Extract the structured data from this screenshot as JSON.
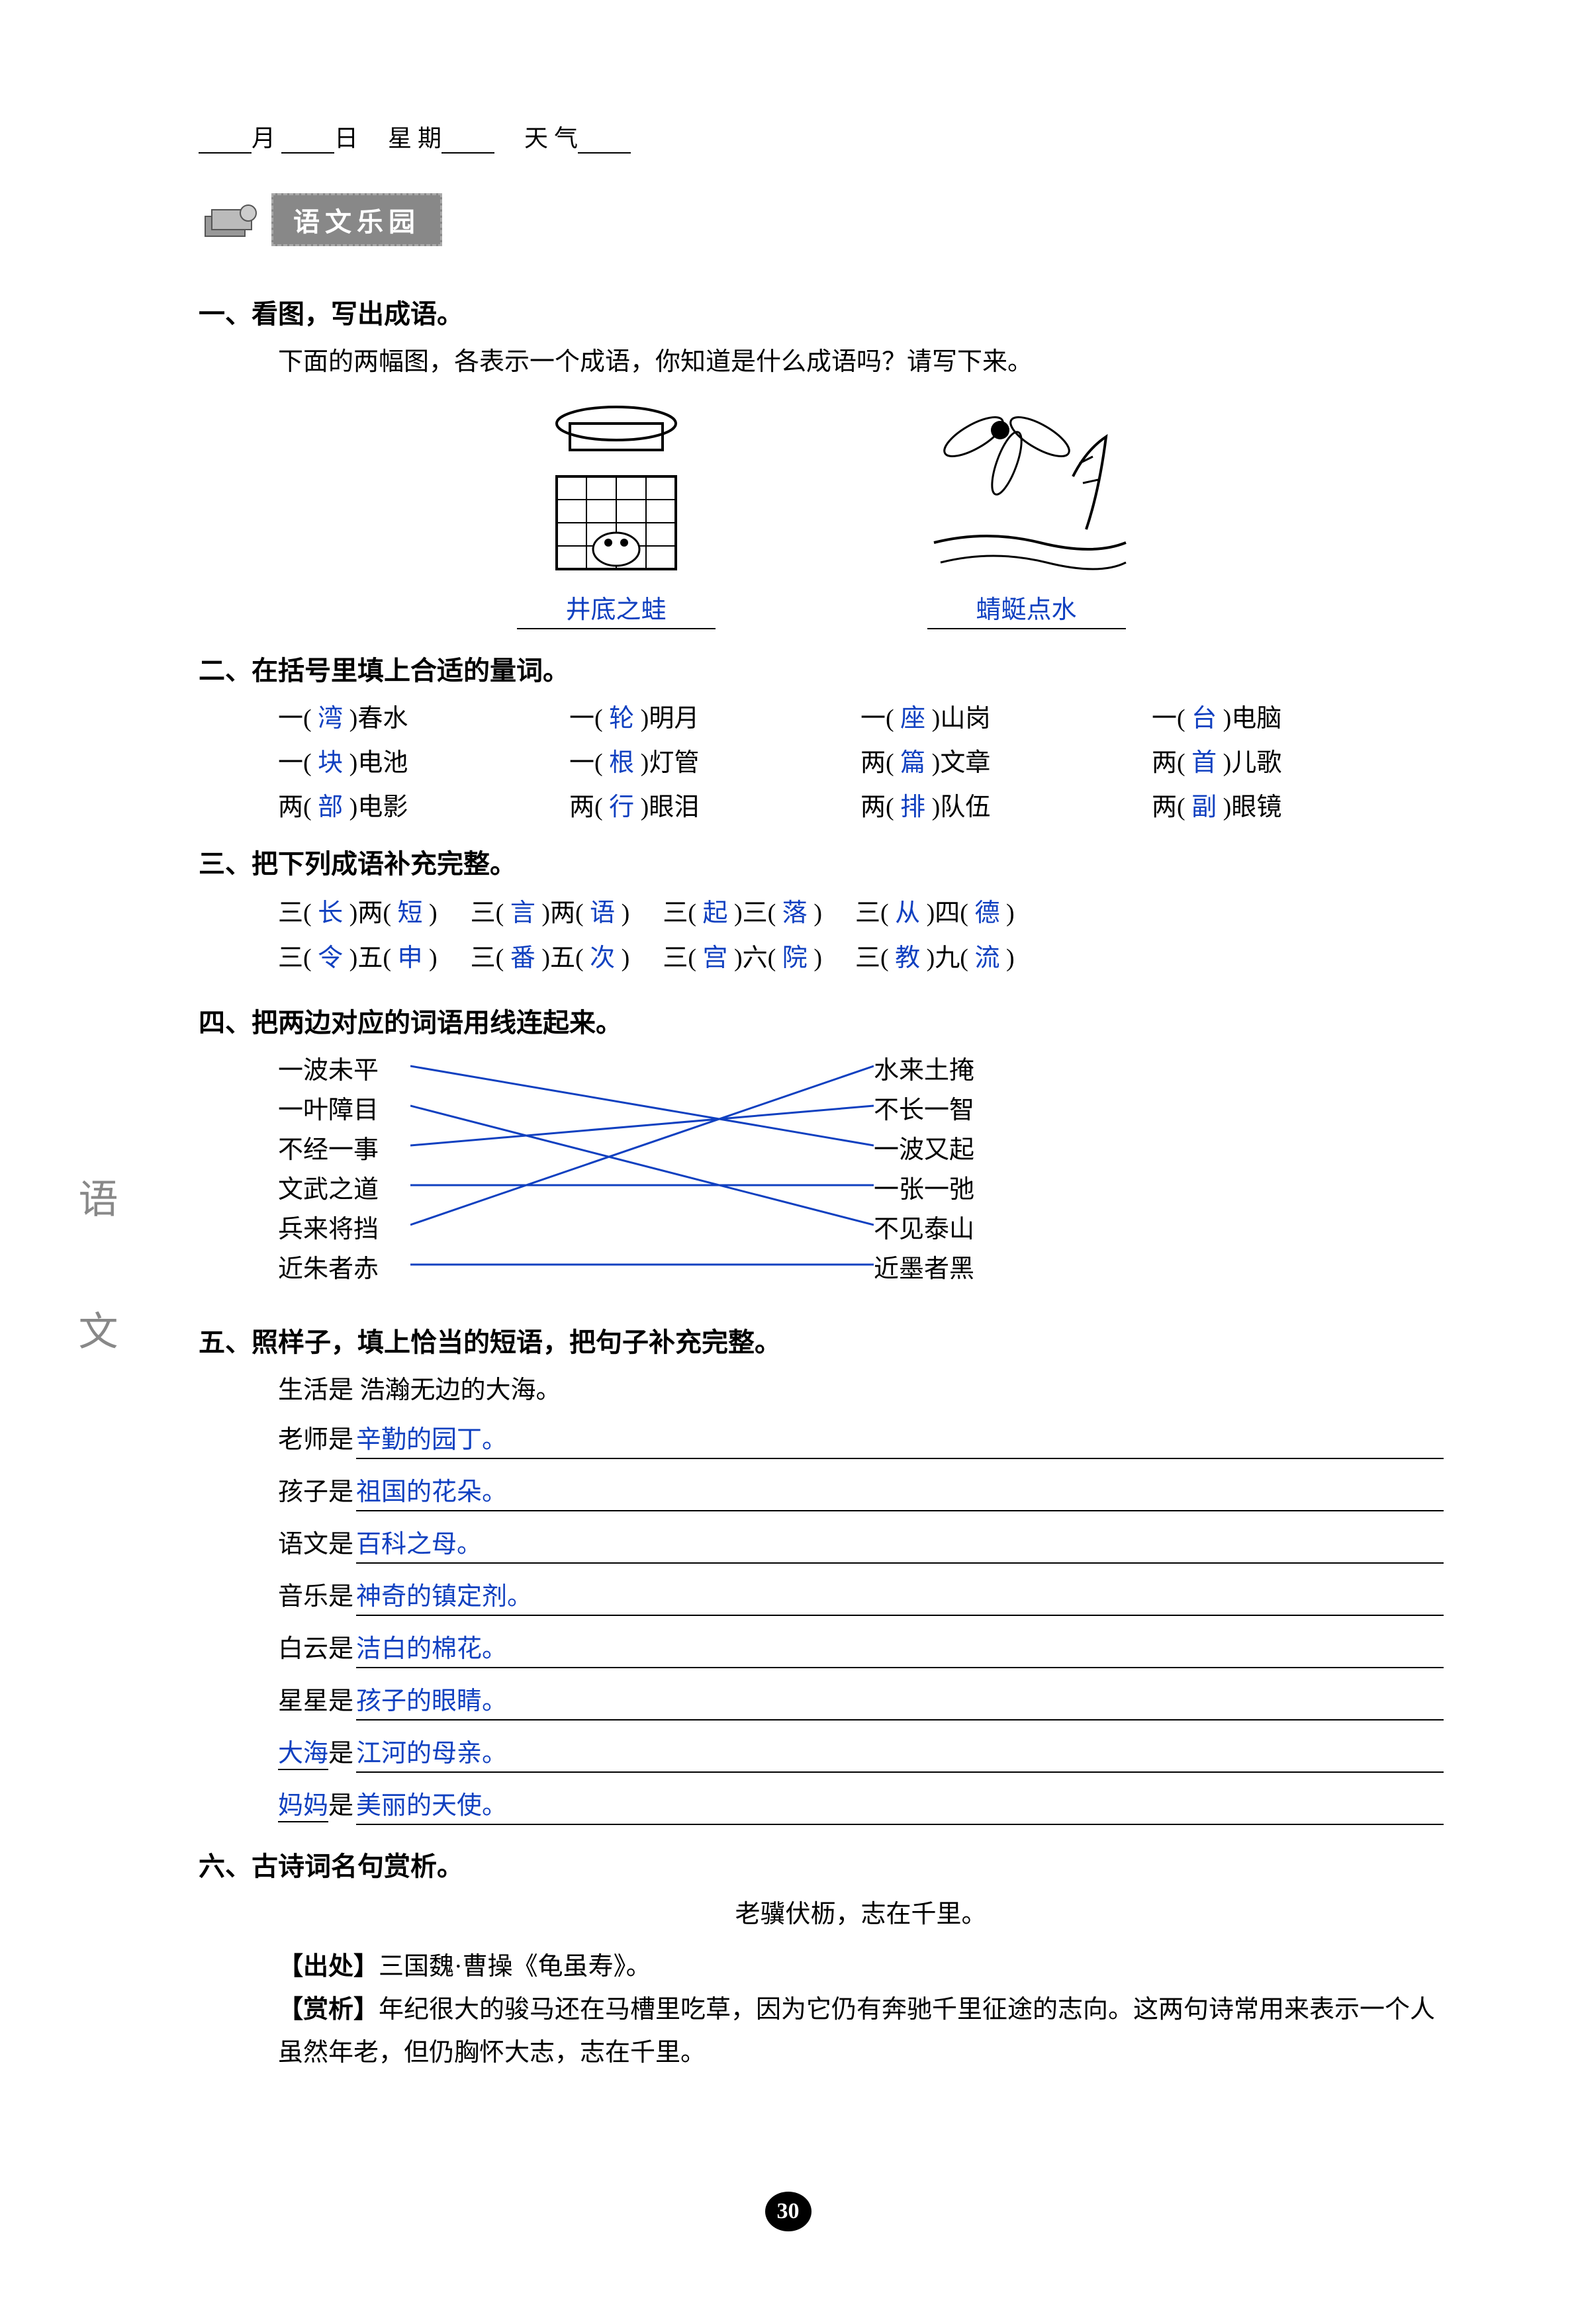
{
  "header": {
    "month": "月",
    "day": "日",
    "weekday": "星 期",
    "weather": "天 气"
  },
  "banner": "语文乐园",
  "side_label": "语　文",
  "page_number": "30",
  "sections": {
    "s1": {
      "title": "一、看图，写出成语。",
      "desc": "下面的两幅图，各表示一个成语，你知道是什么成语吗？请写下来。",
      "captions": [
        "井底之蛙",
        "蜻蜓点水"
      ]
    },
    "s2": {
      "title": "二、在括号里填上合适的量词。",
      "rows": [
        [
          [
            "一(",
            "湾",
            ")春水"
          ],
          [
            "一(",
            "轮",
            ")明月"
          ],
          [
            "一(",
            "座",
            ")山岗"
          ],
          [
            "一(",
            "台",
            ")电脑"
          ]
        ],
        [
          [
            "一(",
            "块",
            ")电池"
          ],
          [
            "一(",
            "根",
            ")灯管"
          ],
          [
            "两(",
            "篇",
            ")文章"
          ],
          [
            "两(",
            "首",
            ")儿歌"
          ]
        ],
        [
          [
            "两(",
            "部",
            ")电影"
          ],
          [
            "两(",
            "行",
            ")眼泪"
          ],
          [
            "两(",
            "排",
            ")队伍"
          ],
          [
            "两(",
            "副",
            ")眼镜"
          ]
        ]
      ]
    },
    "s3": {
      "title": "三、把下列成语补充完整。",
      "rows": [
        [
          [
            "三(",
            "长",
            ")两(",
            "短",
            ")"
          ],
          [
            "三(",
            "言",
            ")两(",
            "语",
            ")"
          ],
          [
            "三(",
            "起",
            ")三(",
            "落",
            ")"
          ],
          [
            "三(",
            "从",
            ")四(",
            "德",
            ")"
          ]
        ],
        [
          [
            "三(",
            "令",
            ")五(",
            "申",
            ")"
          ],
          [
            "三(",
            "番",
            ")五(",
            "次",
            ")"
          ],
          [
            "三(",
            "宫",
            ")六(",
            "院",
            ")"
          ],
          [
            "三(",
            "教",
            ")九(",
            "流",
            ")"
          ]
        ]
      ]
    },
    "s4": {
      "title": "四、把两边对应的词语用线连起来。",
      "left": [
        "一波未平",
        "一叶障目",
        "不经一事",
        "文武之道",
        "兵来将挡",
        "近朱者赤"
      ],
      "right": [
        "水来土掩",
        "不长一智",
        "一波又起",
        "一张一弛",
        "不见泰山",
        "近墨者黑"
      ],
      "connections": [
        [
          0,
          2
        ],
        [
          1,
          4
        ],
        [
          2,
          1
        ],
        [
          3,
          3
        ],
        [
          4,
          0
        ],
        [
          5,
          5
        ]
      ]
    },
    "s5": {
      "title": "五、照样子，填上恰当的短语，把句子补充完整。",
      "example": "生活是 浩瀚无边的大海。",
      "lines": [
        {
          "prefix": "老师是 ",
          "answer": "辛勤的园丁。"
        },
        {
          "prefix": "孩子是 ",
          "answer": "祖国的花朵。"
        },
        {
          "prefix": "语文是 ",
          "answer": "百科之母。"
        },
        {
          "prefix": "音乐是 ",
          "answer": "神奇的镇定剂。"
        },
        {
          "prefix": "白云是 ",
          "answer": "洁白的棉花。"
        },
        {
          "prefix": "星星是 ",
          "answer": "孩子的眼睛。"
        }
      ],
      "free_lines": [
        {
          "prefix_blue": "大海",
          "mid": "是 ",
          "answer": "江河的母亲。"
        },
        {
          "prefix_blue": "妈妈",
          "mid": "是 ",
          "answer": "美丽的天使。"
        }
      ]
    },
    "s6": {
      "title": "六、古诗词名句赏析。",
      "poem": "老骥伏枥，志在千里。",
      "source_label": "【出处】",
      "source": "三国魏·曹操《龟虽寿》。",
      "analysis_label": "【赏析】",
      "analysis": "年纪很大的骏马还在马槽里吃草，因为它仍有奔驰千里征途的志向。这两句诗常用来表示一个人虽然年老，但仍胸怀大志，志在千里。"
    }
  }
}
